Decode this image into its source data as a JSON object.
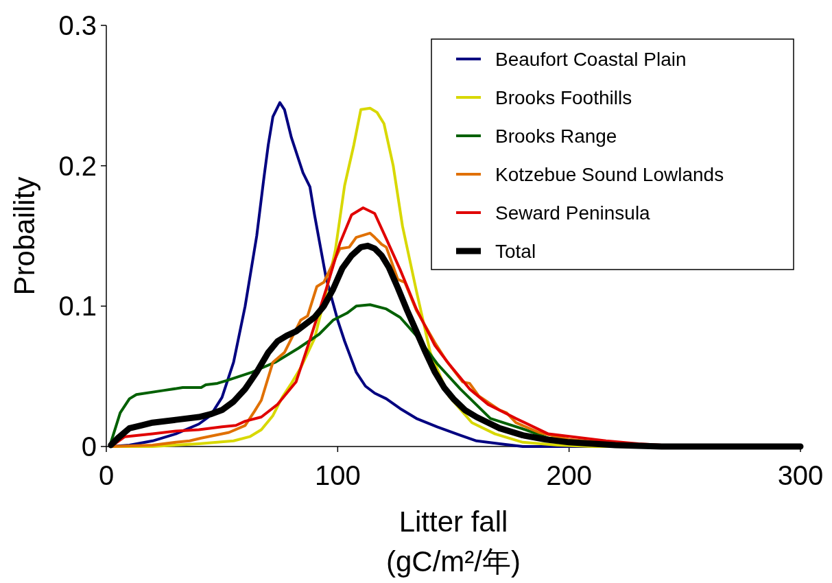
{
  "chart_data": {
    "type": "line",
    "xlabel": "Litter fall\n(gC/m²/年)",
    "ylabel": "Probaility",
    "xlim": [
      0,
      300
    ],
    "ylim": [
      0,
      0.3
    ],
    "xticks": [
      0,
      100,
      200,
      300
    ],
    "yticks": [
      0,
      0.1,
      0.2,
      0.3
    ],
    "legend": "top right",
    "series": [
      {
        "name": "Beaufort Coastal Plain",
        "color": "#000080",
        "x": [
          2,
          10,
          20,
          30,
          40,
          45,
          50,
          55,
          60,
          65,
          68,
          70,
          72,
          75,
          77,
          80,
          85,
          88,
          90,
          95,
          100,
          103,
          108,
          112,
          116,
          121,
          127,
          134,
          143,
          153,
          160,
          170,
          180,
          300
        ],
        "values": [
          0,
          0.001,
          0.004,
          0.009,
          0.016,
          0.022,
          0.035,
          0.06,
          0.1,
          0.15,
          0.19,
          0.215,
          0.235,
          0.245,
          0.24,
          0.22,
          0.195,
          0.185,
          0.165,
          0.12,
          0.09,
          0.075,
          0.053,
          0.043,
          0.038,
          0.034,
          0.027,
          0.02,
          0.014,
          0.008,
          0.004,
          0.002,
          0,
          0
        ]
      },
      {
        "name": "Brooks Foothills",
        "color": "#d8d800",
        "x": [
          2,
          20,
          40,
          55,
          62,
          67,
          72,
          76,
          80,
          84,
          90,
          95,
          99,
          103,
          107,
          110,
          114,
          117,
          120,
          124,
          128,
          134,
          140,
          148,
          158,
          168,
          180,
          195,
          210,
          300
        ],
        "values": [
          0,
          0,
          0.002,
          0.004,
          0.007,
          0.012,
          0.022,
          0.035,
          0.045,
          0.056,
          0.077,
          0.11,
          0.14,
          0.186,
          0.215,
          0.24,
          0.241,
          0.238,
          0.23,
          0.2,
          0.157,
          0.111,
          0.067,
          0.036,
          0.017,
          0.009,
          0.003,
          0.001,
          0,
          0
        ]
      },
      {
        "name": "Brooks Range",
        "color": "#006000",
        "x": [
          2,
          6,
          10,
          13,
          25,
          33,
          41,
          43,
          48,
          52,
          63,
          73,
          83,
          92,
          98,
          104,
          108,
          114,
          121,
          127,
          134,
          143,
          153,
          166,
          181,
          191,
          210
        ],
        "values": [
          0.003,
          0.024,
          0.034,
          0.037,
          0.04,
          0.042,
          0.042,
          0.044,
          0.045,
          0.047,
          0.053,
          0.06,
          0.07,
          0.08,
          0.09,
          0.095,
          0.1,
          0.101,
          0.098,
          0.092,
          0.079,
          0.059,
          0.041,
          0.02,
          0.012,
          0.006,
          0.003
        ]
      },
      {
        "name": "Kotzebue Sound Lowlands",
        "color": "#e07000",
        "x": [
          2,
          20,
          30,
          36,
          41,
          53,
          60,
          64,
          67,
          72,
          77,
          84,
          87,
          91,
          94,
          101,
          105,
          108,
          114,
          116,
          119,
          121,
          126,
          129,
          134,
          142,
          147,
          154,
          157,
          161,
          170,
          173,
          177,
          187,
          200,
          220
        ],
        "values": [
          0,
          0.001,
          0.003,
          0.004,
          0.006,
          0.01,
          0.015,
          0.025,
          0.033,
          0.06,
          0.067,
          0.09,
          0.093,
          0.114,
          0.117,
          0.141,
          0.142,
          0.149,
          0.152,
          0.149,
          0.144,
          0.142,
          0.119,
          0.117,
          0.097,
          0.074,
          0.061,
          0.046,
          0.045,
          0.036,
          0.026,
          0.024,
          0.017,
          0.01,
          0.005,
          0.002
        ]
      },
      {
        "name": "Seward Peninsula",
        "color": "#e00000",
        "x": [
          2,
          8,
          20,
          30,
          40,
          50,
          56,
          60,
          67,
          74,
          82,
          88,
          95,
          101,
          106,
          111,
          116,
          121,
          127,
          134,
          142,
          148,
          157,
          165,
          177,
          191,
          216,
          230,
          250,
          300
        ],
        "values": [
          0,
          0.007,
          0.009,
          0.011,
          0.012,
          0.014,
          0.015,
          0.018,
          0.021,
          0.03,
          0.046,
          0.076,
          0.112,
          0.145,
          0.165,
          0.17,
          0.166,
          0.148,
          0.126,
          0.098,
          0.072,
          0.059,
          0.041,
          0.03,
          0.02,
          0.009,
          0.004,
          0.002,
          0,
          0
        ]
      },
      {
        "name": "Total",
        "color": "#000000",
        "x": [
          2,
          5,
          10,
          15,
          20,
          30,
          40,
          45,
          50,
          55,
          60,
          65,
          70,
          74,
          78,
          82,
          86,
          90,
          94,
          98,
          102,
          106,
          110,
          113,
          116,
          119,
          122,
          126,
          130,
          134,
          138,
          142,
          146,
          150,
          155,
          160,
          165,
          170,
          180,
          190,
          200,
          220,
          240,
          300
        ],
        "values": [
          0.001,
          0.006,
          0.013,
          0.015,
          0.017,
          0.019,
          0.021,
          0.023,
          0.026,
          0.032,
          0.041,
          0.053,
          0.067,
          0.075,
          0.079,
          0.082,
          0.087,
          0.092,
          0.1,
          0.112,
          0.127,
          0.136,
          0.142,
          0.143,
          0.141,
          0.136,
          0.128,
          0.113,
          0.097,
          0.082,
          0.067,
          0.053,
          0.042,
          0.034,
          0.026,
          0.021,
          0.017,
          0.013,
          0.008,
          0.005,
          0.003,
          0.001,
          0,
          0
        ]
      }
    ]
  }
}
